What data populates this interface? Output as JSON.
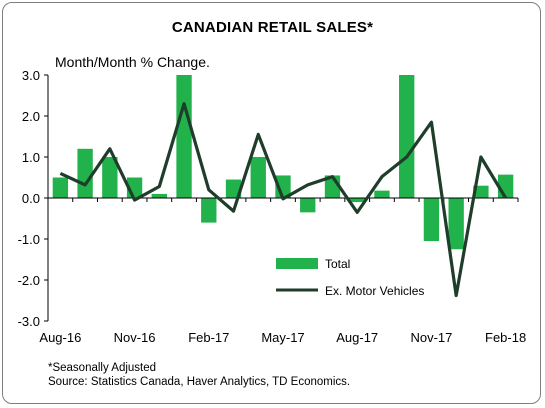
{
  "chart_data": {
    "type": "bar",
    "title": "CANADIAN RETAIL SALES*",
    "ylabel": "Month/Month % Change.",
    "ylim": [
      -3.0,
      3.0
    ],
    "yticks": [
      "3.0",
      "2.0",
      "1.0",
      "0.0",
      "-1.0",
      "-2.0",
      "-3.0"
    ],
    "ytick_values": [
      3,
      2,
      1,
      0,
      -1,
      -2,
      -3
    ],
    "xtick_labels": [
      "Aug-16",
      "Nov-16",
      "Feb-17",
      "May-17",
      "Aug-17",
      "Nov-17",
      "Feb-18"
    ],
    "xtick_indices": [
      0,
      3,
      6,
      9,
      12,
      15,
      18
    ],
    "categories": [
      "Aug-16",
      "Sep-16",
      "Oct-16",
      "Nov-16",
      "Dec-16",
      "Jan-17",
      "Feb-17",
      "Mar-17",
      "Apr-17",
      "May-17",
      "Jun-17",
      "Jul-17",
      "Aug-17",
      "Sep-17",
      "Oct-17",
      "Nov-17",
      "Dec-17",
      "Jan-18",
      "Feb-18"
    ],
    "series": [
      {
        "name": "Total",
        "kind": "bar",
        "color": "#21b24b",
        "values": [
          0.5,
          1.2,
          1.0,
          0.5,
          0.1,
          3.0,
          -0.6,
          0.45,
          1.0,
          0.55,
          -0.35,
          0.55,
          -0.1,
          0.18,
          3.0,
          -1.05,
          -1.25,
          0.3,
          0.57
        ]
      },
      {
        "name": "Ex. Motor Vehicles",
        "kind": "line",
        "color": "#1f3d2b",
        "values": [
          0.6,
          0.32,
          1.2,
          -0.05,
          0.28,
          2.3,
          0.2,
          -0.32,
          1.55,
          -0.02,
          0.32,
          0.52,
          -0.35,
          0.52,
          1.0,
          1.85,
          -2.38,
          1.0,
          0.0
        ]
      }
    ],
    "grid": false,
    "legend": "center-bottom"
  },
  "notes": {
    "line1": "*Seasonally Adjusted",
    "line2": "Source: Statistics Canada, Haver Analytics, TD Economics."
  }
}
